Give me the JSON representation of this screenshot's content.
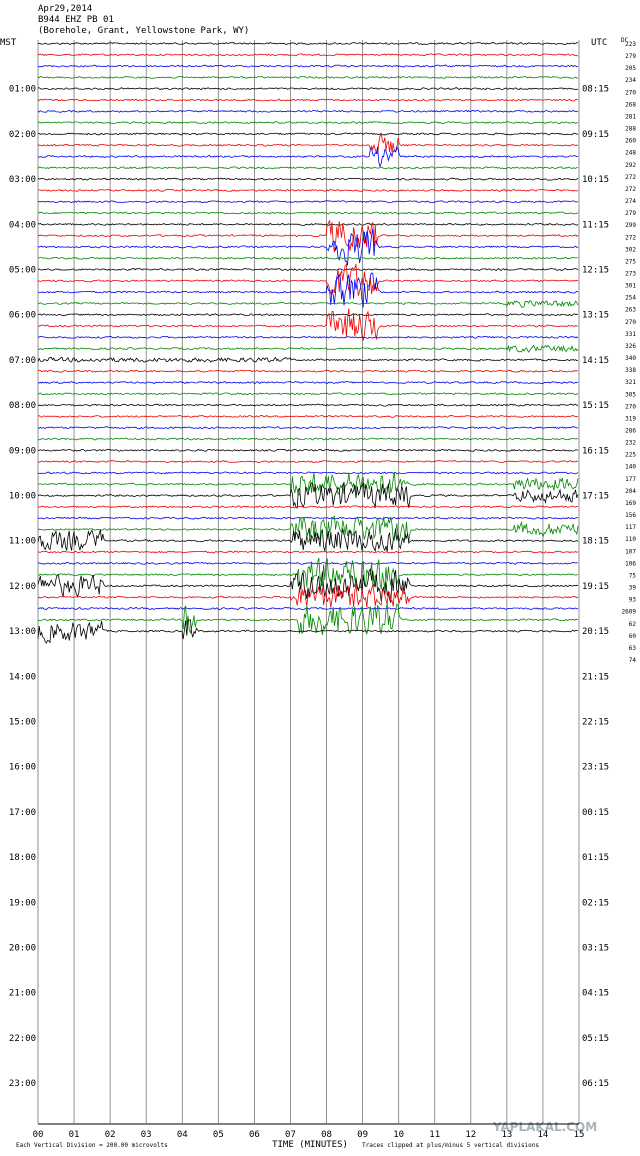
{
  "header": {
    "date": "Apr29,2014",
    "station": "B944 EHZ PB 01",
    "location": "(Borehole, Grant, Yellowstone Park, WY)"
  },
  "left_label": "MST",
  "right_label": "UTC",
  "dc_label": "DC",
  "mst_hours": [
    "01:00",
    "02:00",
    "03:00",
    "04:00",
    "05:00",
    "06:00",
    "07:00",
    "08:00",
    "09:00",
    "10:00",
    "11:00",
    "12:00",
    "13:00",
    "14:00",
    "15:00",
    "16:00",
    "17:00",
    "18:00",
    "19:00",
    "20:00",
    "21:00",
    "22:00",
    "23:00"
  ],
  "utc_hours": [
    "08:15",
    "09:15",
    "10:15",
    "11:15",
    "12:15",
    "13:15",
    "14:15",
    "15:15",
    "16:15",
    "17:15",
    "18:15",
    "19:15",
    "20:15",
    "21:15",
    "22:15",
    "23:15",
    "00:15",
    "01:15",
    "02:15",
    "03:15",
    "04:15",
    "05:15",
    "06:15"
  ],
  "dc_values": [
    223,
    279,
    205,
    234,
    270,
    268,
    281,
    288,
    260,
    248,
    292,
    272,
    272,
    274,
    279,
    299,
    272,
    302,
    275,
    273,
    301,
    254,
    263,
    270,
    331,
    326,
    340,
    338,
    321,
    305,
    270,
    319,
    286,
    232,
    225,
    140,
    177,
    204,
    169,
    156,
    117,
    110,
    107,
    106,
    75,
    39,
    93,
    2609,
    62,
    60,
    63,
    74
  ],
  "x_ticks": [
    "00",
    "01",
    "02",
    "03",
    "04",
    "05",
    "06",
    "07",
    "08",
    "09",
    "10",
    "11",
    "12",
    "13",
    "14",
    "15"
  ],
  "x_title": "TIME (MINUTES)",
  "footer_left": "Each Vertical Division = 200.00 microvolts",
  "footer_right": "Traces clipped at plus/minus 5 vertical divisions",
  "watermark": "YAPLAKAL.COM"
}
